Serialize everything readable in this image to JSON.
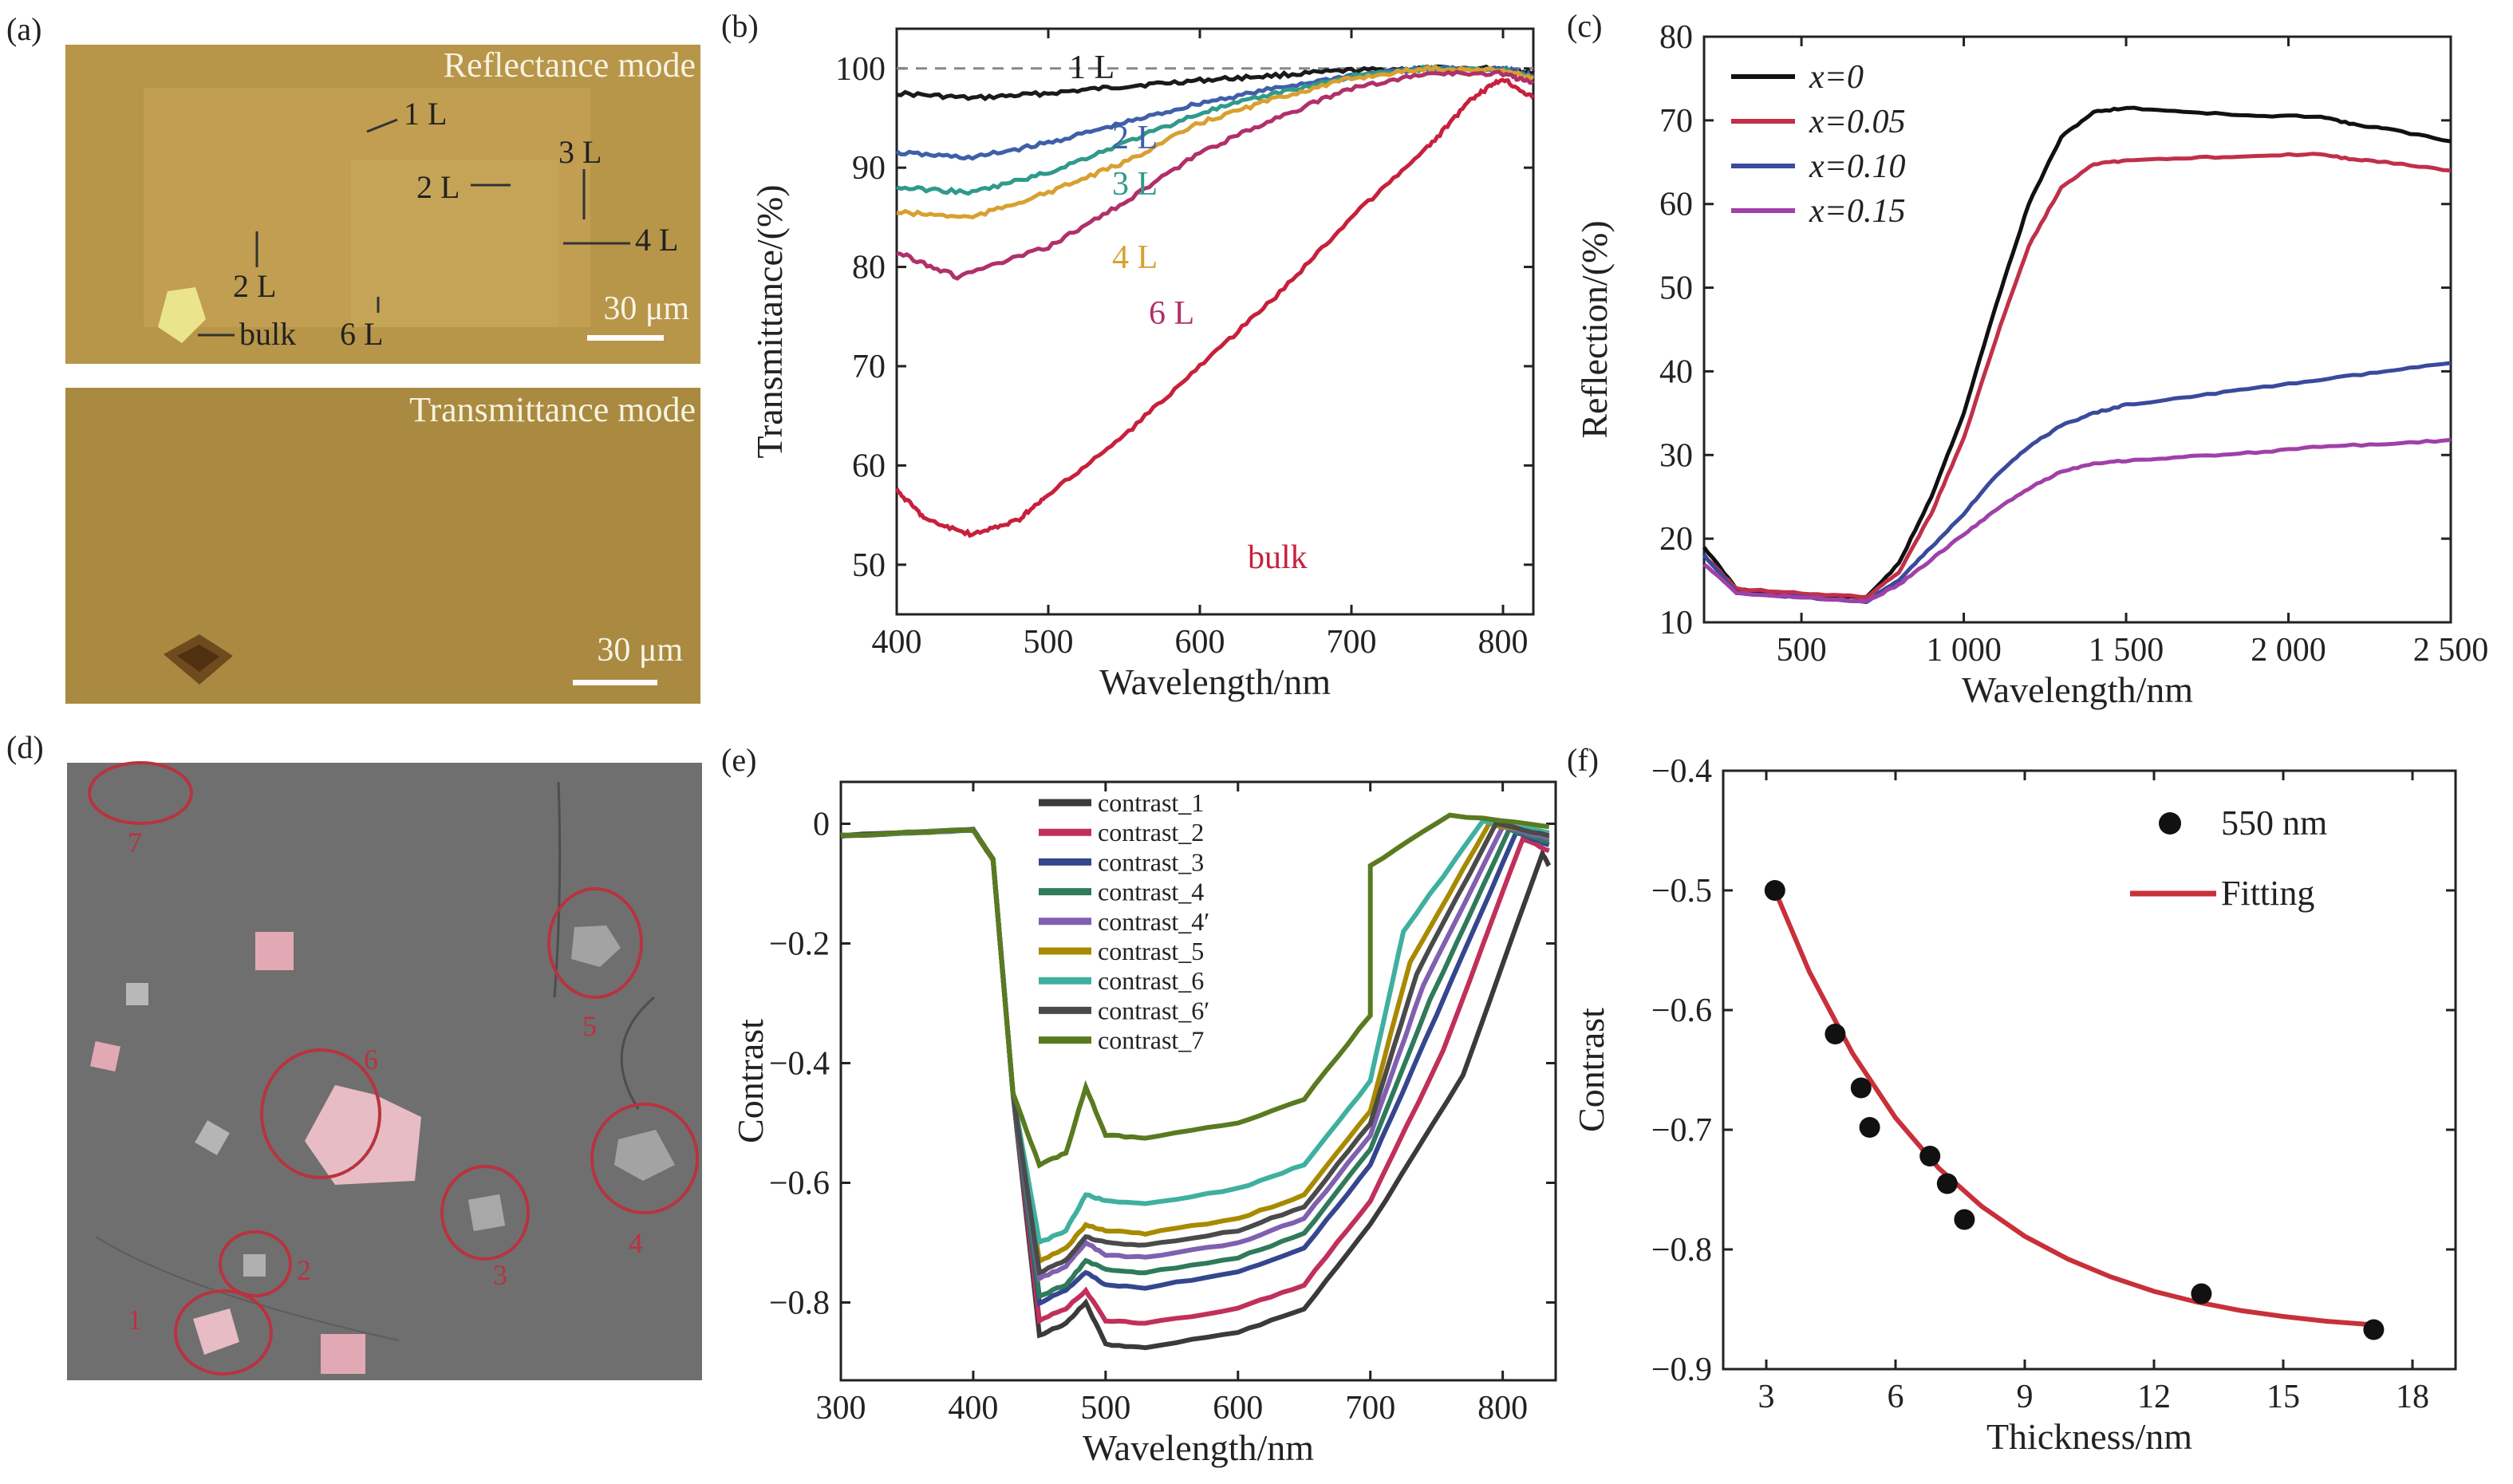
{
  "colors": {
    "optical_bg": "#b79549",
    "optical_bg_dark": "#a98a40",
    "optical_gray_bg": "#6e6e6e",
    "flake_pink": "#e2a9b5",
    "ring_red": "#b8333f",
    "fit_red": "#c8303a"
  },
  "panels": [
    {
      "letter": "(a)",
      "images": [
        {
          "mode": "Reflectance mode",
          "scale": "30 μm",
          "labels": [
            {
              "text": "1 L"
            },
            {
              "text": "2 L"
            },
            {
              "text": "3 L"
            },
            {
              "text": "4 L"
            },
            {
              "text": "2 L"
            },
            {
              "text": "bulk"
            },
            {
              "text": "6 L"
            }
          ]
        },
        {
          "mode": "Transmittance mode",
          "scale": "30 μm"
        }
      ]
    },
    {
      "letter": "(b)",
      "chart_data": {
        "type": "line",
        "xlabel": "Wavelength/nm",
        "ylabel": "Transmittance/(%)",
        "xlim": [
          400,
          820
        ],
        "ylim": [
          45,
          104
        ],
        "xticks": [
          400,
          500,
          600,
          700,
          800
        ],
        "yticks": [
          50,
          60,
          70,
          80,
          90,
          100
        ],
        "reference_line": 100,
        "series": [
          {
            "name": "1 L",
            "color": "#1a1a1a",
            "x": [
              400,
              450,
              500,
              550,
              600,
              650,
              700,
              750,
              800,
              820
            ],
            "y": [
              97.5,
              97,
              97.5,
              98.2,
              98.8,
              99.3,
              99.8,
              100,
              100,
              99.5
            ]
          },
          {
            "name": "2 L",
            "color": "#3f5fa8",
            "x": [
              400,
              450,
              500,
              550,
              600,
              650,
              700,
              750,
              800,
              820
            ],
            "y": [
              91.5,
              91,
              92.5,
              94.5,
              96.5,
              98,
              99.3,
              100,
              100,
              99.2
            ]
          },
          {
            "name": "3 L",
            "color": "#2f9a8a",
            "x": [
              400,
              450,
              500,
              550,
              600,
              650,
              700,
              750,
              800,
              820
            ],
            "y": [
              88,
              87.5,
              89.5,
              92.5,
              95.5,
              97.5,
              99.2,
              100,
              99.8,
              99
            ]
          },
          {
            "name": "4 L",
            "color": "#d8a030",
            "x": [
              400,
              450,
              500,
              550,
              600,
              650,
              700,
              750,
              800,
              820
            ],
            "y": [
              85.5,
              85,
              87.5,
              90.5,
              94.5,
              97,
              99,
              100,
              99.8,
              99
            ]
          },
          {
            "name": "6 L",
            "color": "#b0306a",
            "x": [
              400,
              440,
              500,
              550,
              600,
              650,
              700,
              750,
              800,
              820
            ],
            "y": [
              81.5,
              79,
              82,
              86.5,
              91.5,
              95,
              98,
              99.5,
              99.5,
              98.5
            ]
          },
          {
            "name": "bulk",
            "color": "#c8203c",
            "x": [
              400,
              420,
              450,
              480,
              500,
              550,
              600,
              650,
              700,
              750,
              780,
              800,
              820
            ],
            "y": [
              57.5,
              54.5,
              53,
              54.5,
              57,
              63,
              70,
              77,
              85,
              92,
              97,
              99,
              97
            ]
          }
        ]
      }
    },
    {
      "letter": "(c)",
      "chart_data": {
        "type": "line",
        "xlabel": "Wavelength/nm",
        "ylabel": "Reflection/(%)",
        "xlim": [
          200,
          2500
        ],
        "ylim": [
          10,
          80
        ],
        "xticks": [
          500,
          1000,
          1500,
          2000,
          2500
        ],
        "xticklabels": [
          "500",
          "1 000",
          "1 500",
          "2 000",
          "2 500"
        ],
        "yticks": [
          10,
          20,
          30,
          40,
          50,
          60,
          70,
          80
        ],
        "legend_position": "top-left",
        "series": [
          {
            "name": "x=0",
            "color": "#111111",
            "x": [
              200,
              300,
              500,
              700,
              800,
              900,
              1000,
              1100,
              1200,
              1300,
              1400,
              1500,
              1700,
              1900,
              2100,
              2200,
              2300,
              2500
            ],
            "y": [
              19,
              14,
              13,
              13,
              17,
              25,
              35,
              48,
              60,
              68,
              71,
              71.5,
              71,
              70.5,
              70.5,
              69.5,
              69,
              67.5
            ]
          },
          {
            "name": "x=0.05",
            "color": "#c0304a",
            "x": [
              200,
              300,
              500,
              700,
              800,
              900,
              1000,
              1100,
              1200,
              1300,
              1400,
              1500,
              1700,
              1900,
              2100,
              2200,
              2300,
              2500
            ],
            "y": [
              18,
              14,
              13.5,
              13,
              16,
              23,
              32,
              44,
              55,
              62,
              64.8,
              65.2,
              65.5,
              65.8,
              66,
              65.3,
              65,
              64
            ]
          },
          {
            "name": "x=0.10",
            "color": "#3a4a9c",
            "x": [
              200,
              300,
              500,
              700,
              800,
              900,
              1000,
              1100,
              1200,
              1300,
              1400,
              1500,
              1700,
              1900,
              2100,
              2300,
              2500
            ],
            "y": [
              18,
              13.5,
              13,
              12.5,
              15,
              19,
              23,
              27.5,
              31,
              33.5,
              35,
              36,
              37,
              38,
              39,
              40,
              41
            ]
          },
          {
            "name": "x=0.15",
            "color": "#a040a8",
            "x": [
              200,
              300,
              500,
              700,
              800,
              900,
              1000,
              1100,
              1200,
              1300,
              1400,
              1500,
              1700,
              1900,
              2100,
              2300,
              2500
            ],
            "y": [
              17,
              13.5,
              13,
              12.5,
              14.5,
              17.5,
              20.5,
              23.5,
              26,
              28,
              29,
              29.3,
              29.8,
              30.3,
              31,
              31.3,
              31.8
            ]
          }
        ]
      }
    },
    {
      "letter": "(d)",
      "numbers": [
        "7",
        "6",
        "5",
        "4",
        "3",
        "2",
        "1"
      ]
    },
    {
      "letter": "(e)",
      "chart_data": {
        "type": "line",
        "xlabel": "Wavelength/nm",
        "ylabel": "Contrast",
        "xlim": [
          300,
          840
        ],
        "ylim": [
          -0.93,
          0.07
        ],
        "xticks": [
          300,
          400,
          500,
          600,
          700,
          800
        ],
        "yticks": [
          0,
          -0.2,
          -0.4,
          -0.6,
          -0.8
        ],
        "yticklabels": [
          "0",
          "−0.2",
          "−0.4",
          "−0.6",
          "−0.8"
        ],
        "legend_position": "top-center",
        "series": [
          {
            "name": "contrast_1",
            "color": "#3a3a3a",
            "plateau": -0.87,
            "dip": -0.855,
            "peak": -0.8,
            "end": -0.07,
            "rise_end": 830
          },
          {
            "name": "contrast_2",
            "color": "#c0305a",
            "plateau": -0.83,
            "dip": -0.83,
            "peak": -0.78,
            "end": -0.045,
            "rise_end": 815
          },
          {
            "name": "contrast_3",
            "color": "#34478e",
            "plateau": -0.77,
            "dip": -0.8,
            "peak": -0.75,
            "end": -0.035,
            "rise_end": 810
          },
          {
            "name": "contrast_4",
            "color": "#2f7a5a",
            "plateau": -0.745,
            "dip": -0.79,
            "peak": -0.73,
            "end": -0.03,
            "rise_end": 805
          },
          {
            "name": "contrast_4′",
            "color": "#8060b0",
            "plateau": -0.72,
            "dip": -0.76,
            "peak": -0.7,
            "end": -0.025,
            "rise_end": 800
          },
          {
            "name": "contrast_5",
            "color": "#a88a00",
            "plateau": -0.68,
            "dip": -0.73,
            "peak": -0.67,
            "end": -0.02,
            "rise_end": 790
          },
          {
            "name": "contrast_6",
            "color": "#3fb0a0",
            "plateau": -0.63,
            "dip": -0.7,
            "peak": -0.62,
            "end": -0.015,
            "rise_end": 785
          },
          {
            "name": "contrast_6′",
            "color": "#4a4a4a",
            "plateau": -0.7,
            "dip": -0.75,
            "peak": -0.69,
            "end": -0.02,
            "rise_end": 795
          },
          {
            "name": "contrast_7",
            "color": "#5a7a20",
            "plateau": -0.52,
            "dip": -0.57,
            "peak": -0.44,
            "end": -0.005,
            "rise_end": 760
          }
        ]
      }
    },
    {
      "letter": "(f)",
      "chart_data": {
        "type": "scatter",
        "xlabel": "Thickness/nm",
        "ylabel": "Contrast",
        "xlim": [
          2,
          19
        ],
        "ylim": [
          -0.9,
          -0.4
        ],
        "xticks": [
          3,
          6,
          9,
          12,
          15,
          18
        ],
        "yticks": [
          -0.4,
          -0.5,
          -0.6,
          -0.7,
          -0.8,
          -0.9
        ],
        "yticklabels": [
          "−0.4",
          "−0.5",
          "−0.6",
          "−0.7",
          "−0.8",
          "−0.9"
        ],
        "legend_position": "top-right",
        "series": [
          {
            "name": "550 nm",
            "color": "#111111",
            "x": [
              3.2,
              4.6,
              5.2,
              5.4,
              6.8,
              7.2,
              7.6,
              13.1,
              17.1
            ],
            "y": [
              -0.5,
              -0.62,
              -0.665,
              -0.698,
              -0.722,
              -0.745,
              -0.775,
              -0.837,
              -0.867
            ]
          },
          {
            "name": "Fitting",
            "color": "#c8303a",
            "x": [
              3.2,
              4,
              5,
              6,
              7,
              8,
              9,
              10,
              11,
              12,
              13,
              14,
              15,
              16,
              17.1
            ],
            "y": [
              -0.5,
              -0.568,
              -0.636,
              -0.69,
              -0.732,
              -0.764,
              -0.789,
              -0.808,
              -0.823,
              -0.835,
              -0.844,
              -0.851,
              -0.856,
              -0.86,
              -0.863
            ]
          }
        ]
      }
    }
  ]
}
